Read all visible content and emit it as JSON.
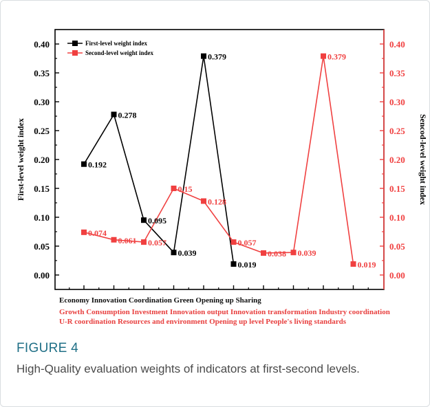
{
  "chart_data": {
    "type": "line",
    "ylabel_left": "First-level weight index",
    "ylabel_right": "Sencod-level weight index",
    "ylim": [
      -0.025,
      0.425
    ],
    "yticks": [
      "0.00",
      "0.05",
      "0.10",
      "0.15",
      "0.20",
      "0.25",
      "0.30",
      "0.35",
      "0.40"
    ],
    "series": [
      {
        "name": "First-level weight index",
        "color": "#000000",
        "points": [
          {
            "x": 1,
            "value": 0.192,
            "label": "0.192"
          },
          {
            "x": 2,
            "value": 0.278,
            "label": "0.278"
          },
          {
            "x": 3,
            "value": 0.095,
            "label": "0.095"
          },
          {
            "x": 4,
            "value": 0.039,
            "label": "0.039"
          },
          {
            "x": 5,
            "value": 0.379,
            "label": "0.379"
          },
          {
            "x": 6,
            "value": 0.019,
            "label": "0.019"
          }
        ]
      },
      {
        "name": "Second-level weight index",
        "color": "#f04040",
        "points": [
          {
            "x": 1,
            "value": 0.074,
            "label": "0.074"
          },
          {
            "x": 2,
            "value": 0.061,
            "label": "0.061"
          },
          {
            "x": 3,
            "value": 0.057,
            "label": "0.057"
          },
          {
            "x": 4,
            "value": 0.15,
            "label": "0.15"
          },
          {
            "x": 5,
            "value": 0.128,
            "label": "0.128"
          },
          {
            "x": 6,
            "value": 0.057,
            "label": "0.057"
          },
          {
            "x": 7,
            "value": 0.038,
            "label": "0.038"
          },
          {
            "x": 8,
            "value": 0.039,
            "label": "0.039"
          },
          {
            "x": 9,
            "value": 0.379,
            "label": "0.379"
          },
          {
            "x": 10,
            "value": 0.019,
            "label": "0.019"
          }
        ]
      }
    ],
    "categories_first": "Economy  Innovation  Coordination  Green  Opening up  Sharing",
    "categories_second_line1": "Growth  Consumption  Investment  Innovation  output Innovation  transformation  Industry coordination",
    "categories_second_line2": "U-R coordination  Resources and environment  Opening up level  People's living standards",
    "legend_placement": "top-left"
  },
  "caption": {
    "label": "FIGURE 4",
    "text": "High-Quality evaluation weights of indicators at first-second levels."
  }
}
